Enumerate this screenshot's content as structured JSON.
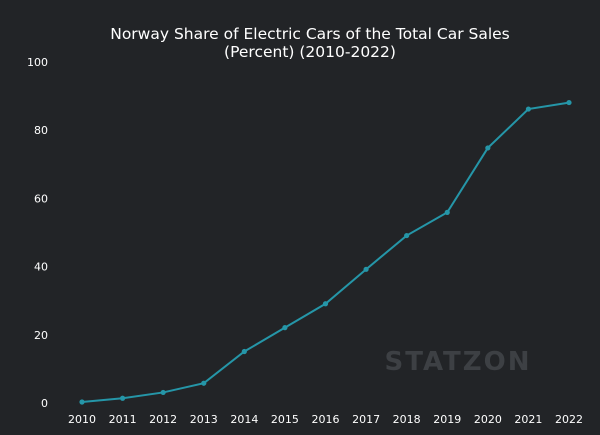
{
  "chart_data": {
    "type": "line",
    "title_lines": [
      "Norway Share of Electric Cars of the Total Car Sales",
      "(Percent) (2010-2022)"
    ],
    "x": [
      "2010",
      "2011",
      "2012",
      "2013",
      "2014",
      "2015",
      "2016",
      "2017",
      "2018",
      "2019",
      "2020",
      "2021",
      "2022"
    ],
    "series": [
      {
        "values": [
          0.3,
          1.4,
          3.1,
          5.8,
          15.1,
          22.1,
          29.1,
          39.2,
          49.1,
          55.9,
          74.8,
          86.2,
          88.1
        ]
      }
    ],
    "y_ticks": [
      "0",
      "20",
      "40",
      "60",
      "80",
      "100"
    ],
    "ylim": [
      0,
      100
    ],
    "grid": false,
    "colors": {
      "line": "#2596a8",
      "background": "#222427",
      "text": "#ffffff"
    }
  },
  "watermark": {
    "text": "STATZON"
  }
}
